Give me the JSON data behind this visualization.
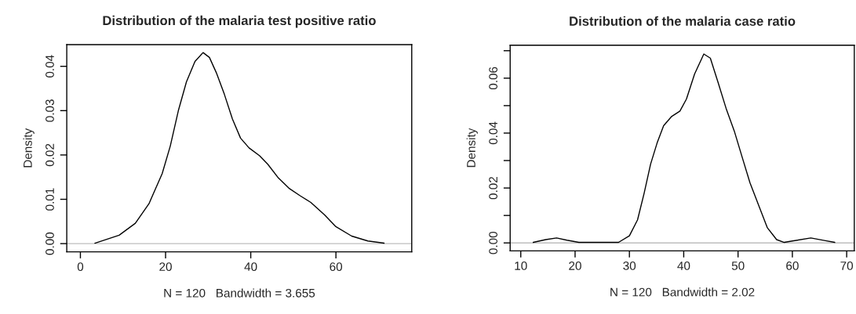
{
  "chart_data": [
    {
      "type": "line",
      "title": "Distribution of the malaria test positive ratio",
      "xlabel": "N = 120   Bandwidth = 3.655",
      "ylabel": "Density",
      "xlim": [
        -3.2,
        77.8
      ],
      "xticks": [
        0,
        20,
        40,
        60
      ],
      "ylim": [
        -0.00185,
        0.0449
      ],
      "yticks": [
        {
          "value": 0,
          "label": "0.00"
        },
        0.01,
        0.02,
        0.03,
        0.04
      ],
      "grid": false,
      "ref_lines": [
        {
          "axis": "y",
          "value": 0,
          "color": "#bebebe"
        }
      ],
      "series": [
        {
          "color": "#000000",
          "x": [
            3.4,
            9.1,
            12.9,
            16.1,
            19.2,
            21.1,
            23.0,
            24.9,
            26.9,
            28.8,
            30.3,
            31.9,
            33.8,
            35.7,
            37.6,
            39.6,
            42.1,
            44.0,
            46.5,
            49.1,
            51.6,
            54.1,
            57.3,
            59.9,
            63.7,
            67.5,
            71.3
          ],
          "values": [
            0.0001,
            0.0019,
            0.0046,
            0.009,
            0.0158,
            0.022,
            0.03,
            0.0365,
            0.0411,
            0.0431,
            0.042,
            0.0386,
            0.0337,
            0.0281,
            0.0238,
            0.0216,
            0.0198,
            0.0179,
            0.0148,
            0.0124,
            0.0108,
            0.0093,
            0.0065,
            0.0039,
            0.0017,
            0.0006,
            0.0001
          ]
        }
      ]
    },
    {
      "type": "line",
      "title": "Distribution of the malaria case ratio",
      "xlabel": "N = 120   Bandwidth = 2.02",
      "ylabel": "Density",
      "xlim": [
        8.05,
        71.4
      ],
      "xticks": [
        10,
        20,
        30,
        40,
        50,
        60,
        70
      ],
      "ylim": [
        -0.0029,
        0.072
      ],
      "yticks": [
        {
          "value": 0,
          "label": "0.00"
        },
        {
          "value": 0.01,
          "label": null
        },
        0.02,
        {
          "value": 0.03,
          "label": null
        },
        0.04,
        {
          "value": 0.05,
          "label": null
        },
        0.06,
        {
          "value": 0.07,
          "label": null
        }
      ],
      "grid": false,
      "ref_lines": [
        {
          "axis": "y",
          "value": 0,
          "color": "#bebebe"
        }
      ],
      "series": [
        {
          "color": "#000000",
          "x": [
            12.3,
            14.6,
            16.6,
            18.5,
            20.7,
            28.0,
            30.0,
            31.5,
            32.7,
            33.9,
            35.1,
            36.3,
            37.8,
            39.3,
            40.5,
            42.0,
            43.7,
            44.9,
            46.3,
            47.8,
            49.3,
            50.7,
            52.2,
            53.7,
            55.4,
            57.1,
            58.5,
            60.0,
            63.4,
            65.9,
            67.8
          ],
          "values": [
            0.0002,
            0.0012,
            0.0018,
            0.001,
            0.0002,
            0.0002,
            0.0026,
            0.0084,
            0.018,
            0.0287,
            0.0364,
            0.0427,
            0.0461,
            0.048,
            0.0524,
            0.0615,
            0.0688,
            0.0673,
            0.0586,
            0.049,
            0.0408,
            0.0316,
            0.0219,
            0.0142,
            0.0055,
            0.0012,
            0.0002,
            0.0007,
            0.0018,
            0.0009,
            0.0002
          ]
        }
      ]
    }
  ]
}
